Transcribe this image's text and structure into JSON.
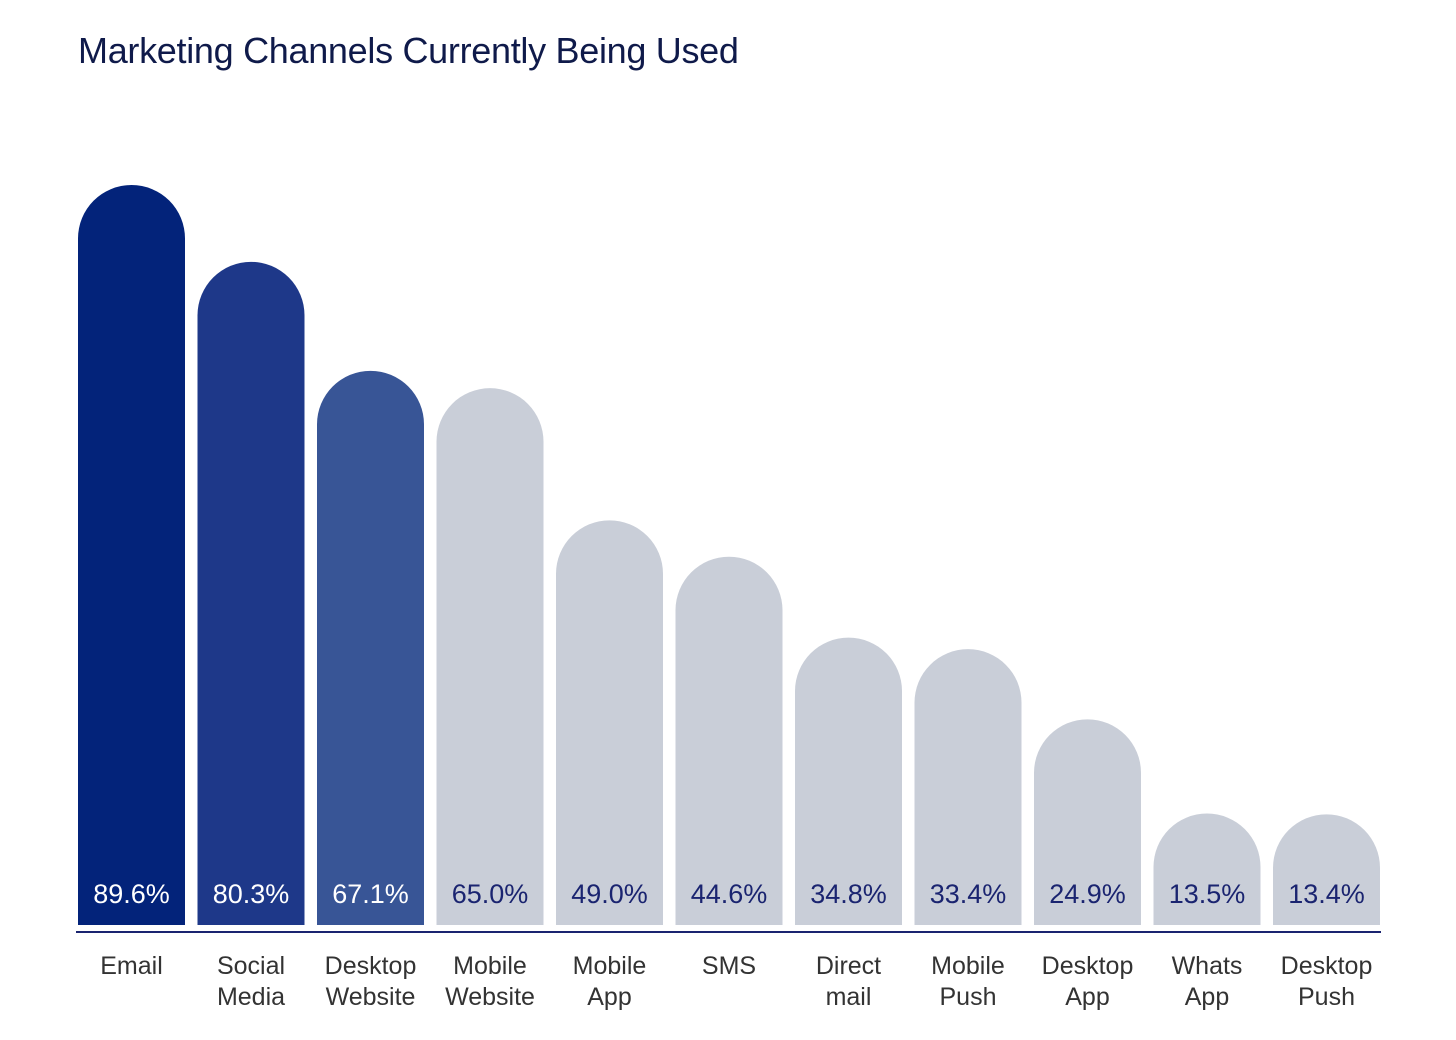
{
  "chart_data": {
    "type": "bar",
    "title": "Marketing Channels Currently Being Used",
    "xlabel": "",
    "ylabel": "",
    "ylim": [
      0,
      100
    ],
    "grid": false,
    "categories": [
      [
        "Email"
      ],
      [
        "Social",
        "Media"
      ],
      [
        "Desktop",
        "Website"
      ],
      [
        "Mobile",
        "Website"
      ],
      [
        "Mobile",
        "App"
      ],
      [
        "SMS"
      ],
      [
        "Direct",
        "mail"
      ],
      [
        "Mobile",
        "Push"
      ],
      [
        "Desktop",
        "App"
      ],
      [
        "Whats",
        "App"
      ],
      [
        "Desktop",
        "Push"
      ]
    ],
    "values": [
      89.6,
      80.3,
      67.1,
      65.0,
      49.0,
      44.6,
      34.8,
      33.4,
      24.9,
      13.5,
      13.4
    ],
    "data_labels": [
      "89.6%",
      "80.3%",
      "67.1%",
      "65.0%",
      "49.0%",
      "44.6%",
      "34.8%",
      "33.4%",
      "24.9%",
      "13.5%",
      "13.4%"
    ],
    "bar_colors": [
      "#03237a",
      "#1e3889",
      "#385596",
      "#c9ced8",
      "#c9ced8",
      "#c9ced8",
      "#c9ced8",
      "#c9ced8",
      "#c9ced8",
      "#c9ced8",
      "#c9ced8"
    ],
    "label_colors": [
      "#ffffff",
      "#ffffff",
      "#ffffff",
      "#1a2470",
      "#1a2470",
      "#1a2470",
      "#1a2470",
      "#1a2470",
      "#1a2470",
      "#1a2470",
      "#1a2470"
    ],
    "axis_color": "#1a2470"
  }
}
